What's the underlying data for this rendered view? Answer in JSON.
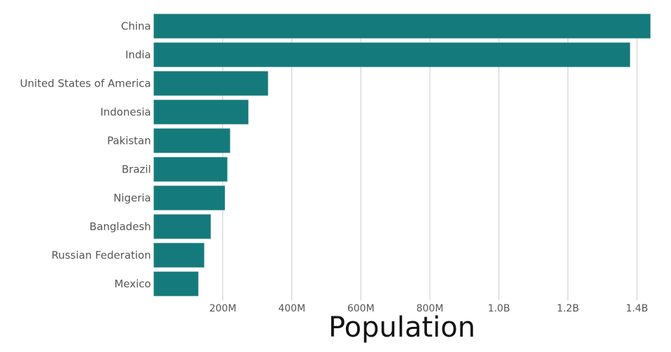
{
  "chart_data": {
    "type": "bar",
    "orientation": "horizontal",
    "title": "",
    "xlabel": "Population",
    "ylabel": "",
    "categories": [
      "China",
      "India",
      "United States of America",
      "Indonesia",
      "Pakistan",
      "Brazil",
      "Nigeria",
      "Bangladesh",
      "Russian Federation",
      "Mexico"
    ],
    "values": [
      1439000000,
      1380000000,
      331000000,
      274000000,
      221000000,
      213000000,
      206000000,
      165000000,
      146000000,
      129000000
    ],
    "xlim": [
      0,
      1440000000
    ],
    "xticks": [
      200000000,
      400000000,
      600000000,
      800000000,
      1000000000,
      1200000000,
      1400000000
    ],
    "xtick_labels": [
      "200M",
      "400M",
      "600M",
      "800M",
      "1.0B",
      "1.2B",
      "1.4B"
    ],
    "grid": true,
    "bar_color": "#157a7b",
    "grid_color": "#cccccc"
  }
}
